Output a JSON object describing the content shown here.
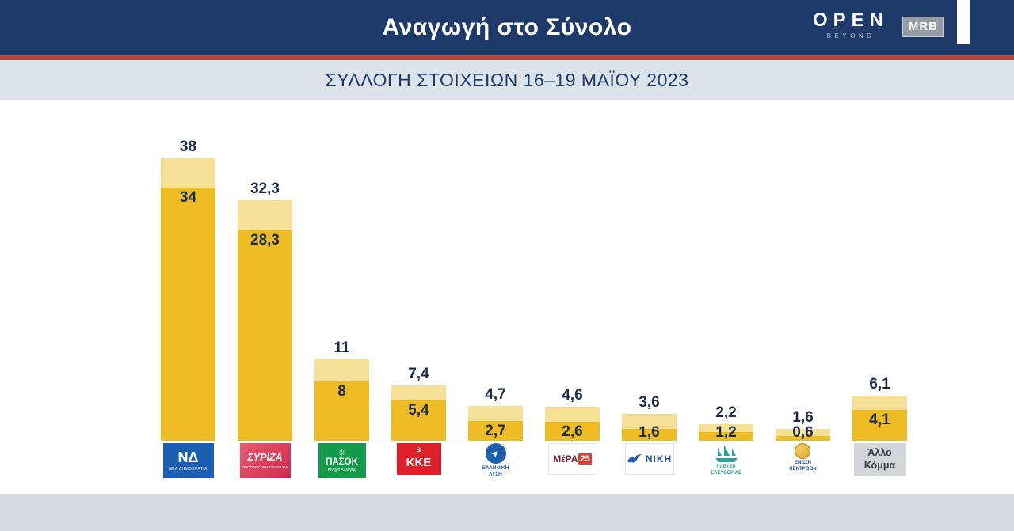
{
  "header": {
    "title": "Αναγωγή στο Σύνολο",
    "open_logo": "OPEN",
    "open_sub": "BEYOND",
    "mrb_logo": "MRB"
  },
  "subtitle": "ΣΥΛΛΟΓΗ ΣΤΟΙΧΕΙΩΝ 16–19 ΜΑΪΟΥ 2023",
  "colors": {
    "header_bg": "#1e3a6b",
    "accent_line": "#b04a3c",
    "subtitle_bg": "#dce3eb",
    "bar_lower": "#eebc22",
    "bar_upper": "#f6df96",
    "value_text": "#1a2c50",
    "footer_bg": "#d6d9dd"
  },
  "chart_data": {
    "type": "bar",
    "title": "Αναγωγή στο Σύνολο",
    "subtitle": "ΣΥΛΛΟΓΗ ΣΤΟΙΧΕΙΩΝ 16–19 ΜΑΪΟΥ 2023",
    "unit": "%",
    "grid": false,
    "legend": false,
    "ylim": [
      0,
      40
    ],
    "categories": [
      "ΝΕΑ ΔΗΜΟΚΡΑΤΙΑ",
      "ΣΥΡΙΖΑ",
      "ΠΑΣΟΚ",
      "ΚΚΕ",
      "ΕΛΛΗΝΙΚΗ ΛΥΣΗ",
      "ΜέΡΑ25",
      "ΝΙΚΗ",
      "ΠΛΕΥΣΗ ΕΛΕΥΘΕΡΙΑΣ",
      "ΕΝΩΣΗ ΚΕΝΤΡΩΩΝ",
      "Άλλο Κόμμα"
    ],
    "series": [
      {
        "name": "upper_estimate",
        "values": [
          38,
          32.3,
          11,
          7.4,
          4.7,
          4.6,
          3.6,
          2.2,
          1.6,
          6.1
        ]
      },
      {
        "name": "lower_estimate",
        "values": [
          34,
          28.3,
          8,
          5.4,
          2.7,
          2.6,
          1.6,
          1.2,
          0.6,
          4.1
        ]
      }
    ],
    "bars": [
      {
        "name": "ΝΕΑ ΔΗΜΟΚΡΑΤΙΑ",
        "high": "38",
        "low": "34",
        "high_val": 38,
        "low_val": 34,
        "logo": {
          "main": "ΝΔ",
          "sub": "ΝΕΑ ΔΗΜΟΚΡΑΤΙΑ"
        }
      },
      {
        "name": "ΣΥΡΙΖΑ",
        "high": "32,3",
        "low": "28,3",
        "high_val": 32.3,
        "low_val": 28.3,
        "logo": {
          "main": "ΣΥΡΙΖΑ",
          "sub": "ΠΡΟΟΔΕΥΤΙΚΗ ΣΥΜΜΑΧΙΑ"
        }
      },
      {
        "name": "ΠΑΣΟΚ",
        "high": "11",
        "low": "8",
        "high_val": 11,
        "low_val": 8,
        "logo": {
          "icon": "☼",
          "main": "ΠΑΣΟΚ",
          "sub": "Κίνημα Αλλαγής"
        }
      },
      {
        "name": "ΚΚΕ",
        "high": "7,4",
        "low": "5,4",
        "high_val": 7.4,
        "low_val": 5.4,
        "logo": {
          "icon": "☭",
          "main": "ΚΚΕ"
        }
      },
      {
        "name": "ΕΛΛΗΝΙΚΗ ΛΥΣΗ",
        "high": "4,7",
        "low": "2,7",
        "high_val": 4.7,
        "low_val": 2.7,
        "logo": {
          "arrow": "➤",
          "line1": "ΕΛΛΗΝΙΚΗ",
          "line2": "ΛΥΣΗ"
        }
      },
      {
        "name": "ΜέΡΑ25",
        "high": "4,6",
        "low": "2,6",
        "high_val": 4.6,
        "low_val": 2.6,
        "logo": {
          "main": "ΜέΡΑ",
          "num": "25"
        }
      },
      {
        "name": "ΝΙΚΗ",
        "high": "3,6",
        "low": "1,6",
        "high_val": 3.6,
        "low_val": 1.6,
        "logo": {
          "main": "ΝΙΚΗ"
        }
      },
      {
        "name": "ΠΛΕΥΣΗ ΕΛΕΥΘΕΡΙΑΣ",
        "high": "2,2",
        "low": "1,2",
        "high_val": 2.2,
        "low_val": 1.2,
        "logo": {
          "line1": "ΠΛΕΥΣΗ",
          "line2": "ΕΛΕΥΘΕΡΙΑΣ"
        }
      },
      {
        "name": "ΕΝΩΣΗ ΚΕΝΤΡΩΩΝ",
        "high": "1,6",
        "low": "0,6",
        "high_val": 1.6,
        "low_val": 0.6,
        "logo": {
          "line1": "ΕΝΩΣΗ",
          "line2": "ΚΕΝΤΡΩΩΝ"
        }
      },
      {
        "name": "Άλλο Κόμμα",
        "high": "6,1",
        "low": "4,1",
        "high_val": 6.1,
        "low_val": 4.1,
        "logo": {
          "line1": "Άλλο",
          "line2": "Κόμμα"
        }
      }
    ]
  }
}
